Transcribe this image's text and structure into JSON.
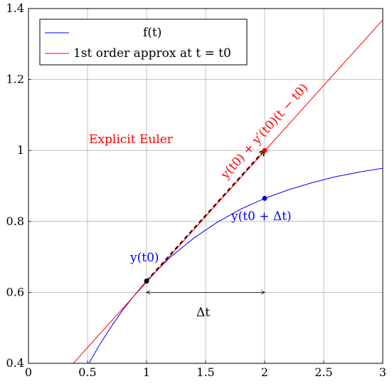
{
  "chart_data": {
    "type": "line",
    "xlim": [
      0,
      3
    ],
    "ylim": [
      0.4,
      1.4
    ],
    "grid": true,
    "x_ticks": [
      0,
      0.5,
      1,
      1.5,
      2,
      2.5,
      3
    ],
    "x_tick_labels": [
      "0",
      "0.5",
      "1",
      "1.5",
      "2",
      "2.5",
      "3"
    ],
    "y_ticks": [
      0.4,
      0.6,
      0.8,
      1,
      1.2,
      1.4
    ],
    "y_tick_labels": [
      "0.4",
      "0.6",
      "0.8",
      "1",
      "1.2",
      "1.4"
    ],
    "legend_placement": "top-left",
    "series": [
      {
        "name": "f(t)",
        "color": "#0000ff",
        "x": [
          0.5,
          0.6,
          0.7,
          0.8,
          0.9,
          1.0,
          1.2,
          1.4,
          1.6,
          1.8,
          2.0,
          2.2,
          2.4,
          2.6,
          2.8,
          3.0
        ],
        "y": [
          0.393,
          0.451,
          0.503,
          0.551,
          0.593,
          0.632,
          0.699,
          0.753,
          0.798,
          0.835,
          0.865,
          0.889,
          0.909,
          0.926,
          0.939,
          0.95
        ]
      },
      {
        "name": "1st order approx at t = t0",
        "color": "#ff0000",
        "x": [
          0.38,
          3.0
        ],
        "y": [
          0.4,
          1.368
        ]
      }
    ],
    "euler_step": {
      "from": [
        1,
        0.632
      ],
      "to": [
        2,
        1.0
      ],
      "color": "#000000"
    },
    "points": [
      {
        "x": 1,
        "y": 0.632,
        "color": "#000000"
      },
      {
        "x": 2,
        "y": 1.0,
        "color": "#ff0000"
      },
      {
        "x": 2,
        "y": 0.865,
        "color": "#0000ff"
      }
    ],
    "delta_arrow": {
      "x_from": 1,
      "x_to": 2,
      "y": 0.6
    },
    "annotations": {
      "explicit_euler": "Explicit Euler",
      "tangent_formula": "y(t0) + y′(t0)(t − t0)",
      "y_t0": "y(t0)",
      "y_t0_dt": "y(t0 + Δt)",
      "delta_t": "Δt"
    },
    "colors": {
      "blue": "#0000ff",
      "red": "#ff0000",
      "grid": "#b3b3b3",
      "black": "#000000"
    }
  }
}
